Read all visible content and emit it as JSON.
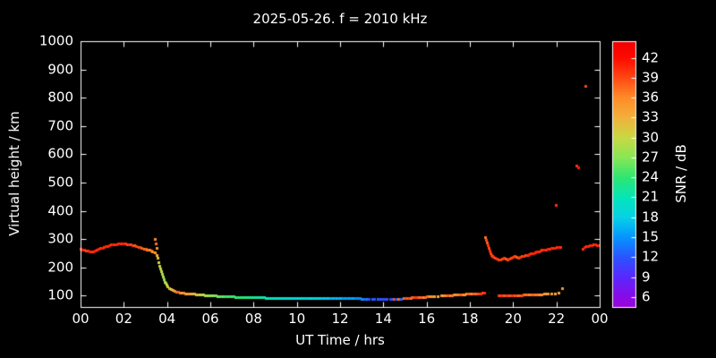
{
  "title": "2025-05-26. f = 2010 kHz",
  "colors": {
    "background": "#000000",
    "axis": "#ffffff",
    "text": "#ffffff"
  },
  "chart_data": {
    "type": "scatter",
    "title": "2025-05-26. f = 2010 kHz",
    "xlabel": "UT Time / hrs",
    "ylabel": "Virtual height / km",
    "xlim": [
      0,
      24
    ],
    "ylim": [
      60,
      1000
    ],
    "x_ticks": {
      "values": [
        0,
        2,
        4,
        6,
        8,
        10,
        12,
        14,
        16,
        18,
        20,
        22,
        24
      ],
      "labels": [
        "00",
        "02",
        "04",
        "06",
        "08",
        "10",
        "12",
        "14",
        "16",
        "18",
        "20",
        "22",
        "00"
      ]
    },
    "y_ticks": [
      100,
      200,
      300,
      400,
      500,
      600,
      700,
      800,
      900,
      1000
    ],
    "colorbar": {
      "label": "SNR / dB",
      "min": 4.5,
      "max": 44.5,
      "ticks": [
        42,
        39,
        36,
        33,
        30,
        27,
        24,
        21,
        18,
        15,
        12,
        9,
        6
      ],
      "stops": [
        {
          "v": 4.5,
          "color": "#9a05dd"
        },
        {
          "v": 6,
          "color": "#8a0ae6"
        },
        {
          "v": 9,
          "color": "#5a28ff"
        },
        {
          "v": 12,
          "color": "#2a55ff"
        },
        {
          "v": 15,
          "color": "#0695ff"
        },
        {
          "v": 18,
          "color": "#06d2e6"
        },
        {
          "v": 21,
          "color": "#05e6b8"
        },
        {
          "v": 24,
          "color": "#2ee671"
        },
        {
          "v": 27,
          "color": "#8ae655"
        },
        {
          "v": 30,
          "color": "#c8d944"
        },
        {
          "v": 33,
          "color": "#f2b03c"
        },
        {
          "v": 36,
          "color": "#ff8c28"
        },
        {
          "v": 39,
          "color": "#ff4713"
        },
        {
          "v": 42,
          "color": "#ff0a00"
        },
        {
          "v": 44.5,
          "color": "#f20000"
        }
      ]
    },
    "points": [
      [
        0.0,
        265,
        40
      ],
      [
        0.08,
        264,
        41
      ],
      [
        0.17,
        262,
        40
      ],
      [
        0.25,
        260,
        39
      ],
      [
        0.33,
        258,
        40
      ],
      [
        0.42,
        256,
        41
      ],
      [
        0.5,
        255,
        40
      ],
      [
        0.58,
        256,
        40
      ],
      [
        0.67,
        259,
        41
      ],
      [
        0.75,
        262,
        40
      ],
      [
        0.83,
        265,
        41
      ],
      [
        0.92,
        268,
        40
      ],
      [
        1.0,
        270,
        41
      ],
      [
        1.08,
        272,
        40
      ],
      [
        1.17,
        274,
        41
      ],
      [
        1.25,
        276,
        40
      ],
      [
        1.33,
        278,
        41
      ],
      [
        1.42,
        280,
        40
      ],
      [
        1.5,
        281,
        41
      ],
      [
        1.58,
        282,
        40
      ],
      [
        1.67,
        283,
        41
      ],
      [
        1.75,
        284,
        40
      ],
      [
        1.83,
        285,
        41
      ],
      [
        1.92,
        285,
        40
      ],
      [
        2.0,
        285,
        41
      ],
      [
        2.08,
        284,
        40
      ],
      [
        2.17,
        283,
        39
      ],
      [
        2.25,
        282,
        40
      ],
      [
        2.33,
        280,
        39
      ],
      [
        2.42,
        279,
        40
      ],
      [
        2.5,
        277,
        38
      ],
      [
        2.58,
        275,
        39
      ],
      [
        2.67,
        273,
        38
      ],
      [
        2.75,
        271,
        39
      ],
      [
        2.83,
        269,
        38
      ],
      [
        2.92,
        267,
        37
      ],
      [
        3.0,
        265,
        38
      ],
      [
        3.08,
        263,
        37
      ],
      [
        3.17,
        261,
        36
      ],
      [
        3.25,
        259,
        37
      ],
      [
        3.33,
        256,
        36
      ],
      [
        3.42,
        252,
        35
      ],
      [
        3.42,
        300,
        36
      ],
      [
        3.46,
        286,
        37
      ],
      [
        3.5,
        268,
        35
      ],
      [
        3.5,
        243,
        33
      ],
      [
        3.54,
        235,
        32
      ],
      [
        3.58,
        218,
        30
      ],
      [
        3.63,
        205,
        31
      ],
      [
        3.67,
        195,
        29
      ],
      [
        3.71,
        186,
        30
      ],
      [
        3.75,
        176,
        28
      ],
      [
        3.79,
        167,
        29
      ],
      [
        3.83,
        158,
        27
      ],
      [
        3.88,
        150,
        29
      ],
      [
        3.92,
        144,
        28
      ],
      [
        3.96,
        139,
        30
      ],
      [
        4.0,
        134,
        31
      ],
      [
        4.08,
        128,
        32
      ],
      [
        4.17,
        123,
        31
      ],
      [
        4.25,
        119,
        33
      ],
      [
        4.33,
        116,
        35
      ],
      [
        4.42,
        114,
        37
      ],
      [
        4.5,
        113,
        38
      ],
      [
        4.58,
        112,
        36
      ],
      [
        4.67,
        111,
        34
      ],
      [
        4.75,
        110,
        36
      ],
      [
        4.83,
        109,
        35
      ],
      [
        4.92,
        108,
        33
      ],
      [
        5.0,
        107,
        35
      ],
      [
        5.08,
        107,
        33
      ],
      [
        5.17,
        106,
        32
      ],
      [
        5.25,
        106,
        33
      ],
      [
        5.33,
        105,
        31
      ],
      [
        5.42,
        104,
        32
      ],
      [
        5.5,
        104,
        30
      ],
      [
        5.58,
        103,
        29
      ],
      [
        5.67,
        103,
        30
      ],
      [
        5.75,
        102,
        28
      ],
      [
        5.83,
        102,
        29
      ],
      [
        5.92,
        101,
        28
      ],
      [
        6.0,
        101,
        27
      ],
      [
        6.08,
        100,
        28
      ],
      [
        6.17,
        100,
        27
      ],
      [
        6.25,
        100,
        26
      ],
      [
        6.33,
        99,
        27
      ],
      [
        6.42,
        99,
        26
      ],
      [
        6.5,
        99,
        25
      ],
      [
        6.58,
        98,
        26
      ],
      [
        6.67,
        98,
        25
      ],
      [
        6.75,
        98,
        24
      ],
      [
        6.83,
        97,
        25
      ],
      [
        6.92,
        97,
        24
      ],
      [
        7.0,
        97,
        25
      ],
      [
        7.08,
        97,
        24
      ],
      [
        7.17,
        96,
        25
      ],
      [
        7.25,
        96,
        24
      ],
      [
        7.33,
        96,
        23
      ],
      [
        7.42,
        96,
        24
      ],
      [
        7.5,
        96,
        23
      ],
      [
        7.58,
        95,
        24
      ],
      [
        7.67,
        95,
        23
      ],
      [
        7.75,
        95,
        24
      ],
      [
        7.83,
        95,
        23
      ],
      [
        7.92,
        95,
        22
      ],
      [
        8.0,
        95,
        23
      ],
      [
        8.08,
        94,
        22
      ],
      [
        8.17,
        94,
        23
      ],
      [
        8.25,
        94,
        22
      ],
      [
        8.33,
        94,
        21
      ],
      [
        8.42,
        94,
        22
      ],
      [
        8.5,
        94,
        21
      ],
      [
        8.58,
        93,
        22
      ],
      [
        8.67,
        93,
        21
      ],
      [
        8.75,
        93,
        20
      ],
      [
        8.83,
        93,
        21
      ],
      [
        8.92,
        93,
        20
      ],
      [
        9.0,
        93,
        21
      ],
      [
        9.08,
        93,
        20
      ],
      [
        9.17,
        92,
        21
      ],
      [
        9.25,
        92,
        20
      ],
      [
        9.33,
        92,
        19
      ],
      [
        9.42,
        92,
        20
      ],
      [
        9.5,
        92,
        19
      ],
      [
        9.58,
        92,
        20
      ],
      [
        9.67,
        92,
        19
      ],
      [
        9.75,
        92,
        18
      ],
      [
        9.83,
        92,
        19
      ],
      [
        9.92,
        92,
        18
      ],
      [
        10.0,
        92,
        19
      ],
      [
        10.08,
        92,
        18
      ],
      [
        10.17,
        92,
        19
      ],
      [
        10.25,
        92,
        20
      ],
      [
        10.33,
        92,
        18
      ],
      [
        10.42,
        92,
        19
      ],
      [
        10.5,
        92,
        18
      ],
      [
        10.58,
        92,
        19
      ],
      [
        10.67,
        92,
        21
      ],
      [
        10.75,
        92,
        18
      ],
      [
        10.83,
        92,
        19
      ],
      [
        10.92,
        93,
        18
      ],
      [
        11.0,
        93,
        19
      ],
      [
        11.08,
        93,
        18
      ],
      [
        11.17,
        93,
        17
      ],
      [
        11.25,
        93,
        18
      ],
      [
        11.33,
        93,
        17
      ],
      [
        11.42,
        93,
        18
      ],
      [
        11.5,
        93,
        17
      ],
      [
        11.58,
        93,
        16
      ],
      [
        11.67,
        93,
        17
      ],
      [
        11.75,
        93,
        16
      ],
      [
        11.83,
        93,
        17
      ],
      [
        11.92,
        93,
        16
      ],
      [
        12.0,
        93,
        17
      ],
      [
        12.08,
        92,
        16
      ],
      [
        12.17,
        92,
        15
      ],
      [
        12.25,
        92,
        16
      ],
      [
        12.33,
        92,
        15
      ],
      [
        12.42,
        92,
        16
      ],
      [
        12.5,
        92,
        15
      ],
      [
        12.58,
        91,
        16
      ],
      [
        12.67,
        91,
        15
      ],
      [
        12.75,
        91,
        14
      ],
      [
        12.83,
        91,
        15
      ],
      [
        12.92,
        91,
        14
      ],
      [
        13.0,
        90,
        15
      ],
      [
        13.08,
        90,
        14
      ],
      [
        13.17,
        90,
        13
      ],
      [
        13.25,
        90,
        14
      ],
      [
        13.33,
        90,
        12
      ],
      [
        13.5,
        89,
        13
      ],
      [
        13.58,
        89,
        12
      ],
      [
        13.75,
        88,
        13
      ],
      [
        13.83,
        88,
        12
      ],
      [
        13.92,
        88,
        11
      ],
      [
        14.0,
        88,
        12
      ],
      [
        14.08,
        88,
        11
      ],
      [
        14.17,
        88,
        12
      ],
      [
        14.33,
        88,
        11
      ],
      [
        14.42,
        89,
        12
      ],
      [
        14.5,
        89,
        38
      ],
      [
        14.58,
        89,
        12
      ],
      [
        14.67,
        90,
        36
      ],
      [
        14.75,
        90,
        38
      ],
      [
        14.83,
        90,
        13
      ],
      [
        14.92,
        91,
        37
      ],
      [
        15.0,
        92,
        40
      ],
      [
        15.08,
        92,
        38
      ],
      [
        15.17,
        93,
        39
      ],
      [
        15.25,
        93,
        37
      ],
      [
        15.33,
        94,
        38
      ],
      [
        15.42,
        94,
        39
      ],
      [
        15.5,
        94,
        40
      ],
      [
        15.58,
        95,
        38
      ],
      [
        15.67,
        95,
        37
      ],
      [
        15.75,
        96,
        38
      ],
      [
        15.83,
        96,
        36
      ],
      [
        15.92,
        96,
        37
      ],
      [
        16.0,
        97,
        38
      ],
      [
        16.08,
        97,
        36
      ],
      [
        16.17,
        98,
        35
      ],
      [
        16.25,
        98,
        36
      ],
      [
        16.33,
        98,
        34
      ],
      [
        16.5,
        99,
        33
      ],
      [
        16.67,
        100,
        35
      ],
      [
        16.75,
        100,
        34
      ],
      [
        16.83,
        100,
        36
      ],
      [
        16.92,
        101,
        37
      ],
      [
        17.0,
        101,
        38
      ],
      [
        17.08,
        102,
        36
      ],
      [
        17.17,
        102,
        37
      ],
      [
        17.25,
        103,
        36
      ],
      [
        17.33,
        103,
        35
      ],
      [
        17.42,
        103,
        36
      ],
      [
        17.5,
        104,
        37
      ],
      [
        17.58,
        104,
        38
      ],
      [
        17.67,
        105,
        36
      ],
      [
        17.75,
        105,
        35
      ],
      [
        17.83,
        106,
        36
      ],
      [
        17.92,
        106,
        38
      ],
      [
        18.0,
        106,
        37
      ],
      [
        18.08,
        107,
        36
      ],
      [
        18.17,
        107,
        38
      ],
      [
        18.25,
        108,
        37
      ],
      [
        18.33,
        108,
        38
      ],
      [
        18.42,
        109,
        39
      ],
      [
        18.5,
        109,
        40
      ],
      [
        18.58,
        110,
        39
      ],
      [
        18.67,
        111,
        40
      ],
      [
        18.71,
        308,
        37
      ],
      [
        18.75,
        298,
        39
      ],
      [
        18.79,
        288,
        38
      ],
      [
        18.83,
        278,
        40
      ],
      [
        18.88,
        268,
        39
      ],
      [
        18.92,
        258,
        40
      ],
      [
        18.96,
        250,
        39
      ],
      [
        19.0,
        245,
        40
      ],
      [
        19.04,
        240,
        39
      ],
      [
        19.08,
        237,
        40
      ],
      [
        19.17,
        233,
        39
      ],
      [
        19.25,
        230,
        40
      ],
      [
        19.33,
        228,
        39
      ],
      [
        19.42,
        227,
        40
      ],
      [
        19.5,
        230,
        39
      ],
      [
        19.58,
        234,
        40
      ],
      [
        19.67,
        231,
        38
      ],
      [
        19.75,
        228,
        39
      ],
      [
        19.83,
        230,
        40
      ],
      [
        19.92,
        233,
        39
      ],
      [
        20.0,
        236,
        40
      ],
      [
        20.08,
        239,
        39
      ],
      [
        20.17,
        237,
        38
      ],
      [
        20.25,
        235,
        39
      ],
      [
        20.33,
        237,
        40
      ],
      [
        20.42,
        239,
        39
      ],
      [
        20.5,
        241,
        40
      ],
      [
        20.58,
        243,
        39
      ],
      [
        20.67,
        245,
        40
      ],
      [
        20.75,
        247,
        41
      ],
      [
        20.83,
        249,
        40
      ],
      [
        20.92,
        251,
        41
      ],
      [
        21.0,
        253,
        40
      ],
      [
        21.08,
        255,
        41
      ],
      [
        21.17,
        257,
        40
      ],
      [
        21.25,
        259,
        41
      ],
      [
        21.33,
        261,
        40
      ],
      [
        21.42,
        263,
        41
      ],
      [
        21.5,
        264,
        40
      ],
      [
        21.58,
        266,
        41
      ],
      [
        21.67,
        267,
        40
      ],
      [
        21.75,
        268,
        41
      ],
      [
        21.83,
        269,
        40
      ],
      [
        21.92,
        270,
        41
      ],
      [
        22.0,
        271,
        40
      ],
      [
        22.08,
        272,
        41
      ],
      [
        22.17,
        273,
        40
      ],
      [
        19.33,
        100,
        40
      ],
      [
        19.42,
        100,
        39
      ],
      [
        19.5,
        100,
        40
      ],
      [
        19.58,
        100,
        38
      ],
      [
        19.67,
        101,
        39
      ],
      [
        19.75,
        101,
        40
      ],
      [
        19.83,
        101,
        38
      ],
      [
        19.92,
        101,
        39
      ],
      [
        20.0,
        101,
        40
      ],
      [
        20.08,
        102,
        38
      ],
      [
        20.17,
        102,
        39
      ],
      [
        20.25,
        102,
        37
      ],
      [
        20.33,
        102,
        38
      ],
      [
        20.42,
        102,
        39
      ],
      [
        20.5,
        103,
        38
      ],
      [
        20.58,
        103,
        37
      ],
      [
        20.67,
        103,
        38
      ],
      [
        20.75,
        103,
        36
      ],
      [
        20.83,
        104,
        37
      ],
      [
        20.92,
        104,
        38
      ],
      [
        21.0,
        104,
        36
      ],
      [
        21.08,
        104,
        37
      ],
      [
        21.17,
        105,
        36
      ],
      [
        21.25,
        105,
        35
      ],
      [
        21.33,
        105,
        36
      ],
      [
        21.42,
        106,
        35
      ],
      [
        21.5,
        106,
        34
      ],
      [
        21.58,
        106,
        35
      ],
      [
        21.75,
        107,
        34
      ],
      [
        21.92,
        108,
        33
      ],
      [
        22.08,
        110,
        34
      ],
      [
        22.25,
        128,
        35
      ],
      [
        21.96,
        420,
        40
      ],
      [
        22.92,
        560,
        40
      ],
      [
        23.0,
        555,
        41
      ],
      [
        23.33,
        843,
        39
      ],
      [
        23.21,
        267,
        40
      ],
      [
        23.29,
        271,
        41
      ],
      [
        23.38,
        274,
        40
      ],
      [
        23.46,
        276,
        41
      ],
      [
        23.54,
        277,
        40
      ],
      [
        23.63,
        278,
        41
      ],
      [
        23.71,
        280,
        40
      ],
      [
        23.79,
        280,
        41
      ],
      [
        23.88,
        279,
        40
      ],
      [
        23.96,
        277,
        41
      ]
    ]
  }
}
